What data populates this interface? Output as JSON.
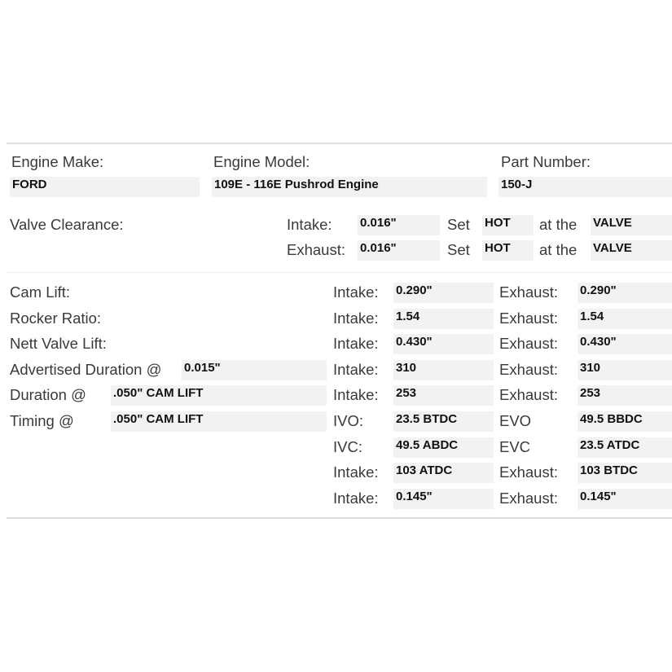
{
  "header": {
    "make_label": "Engine Make:",
    "make_value": "FORD",
    "model_label": "Engine Model:",
    "model_value": "109E - 116E Pushrod Engine",
    "part_label": "Part Number:",
    "part_value": "150-J"
  },
  "valve_clearance": {
    "label": "Valve Clearance:",
    "rows": [
      {
        "label": "Intake:",
        "value": "0.016\"",
        "set_label": "Set",
        "set_value": "HOT",
        "at_label": "at the",
        "at_value": "VALVE"
      },
      {
        "label": "Exhaust:",
        "value": "0.016\"",
        "set_label": "Set",
        "set_value": "HOT",
        "at_label": "at the",
        "at_value": "VALVE"
      }
    ]
  },
  "specs": [
    {
      "label": "Cam Lift:",
      "extra": null,
      "l1": "Intake:",
      "v1": "0.290\"",
      "l2": "Exhaust:",
      "v2": "0.290\""
    },
    {
      "label": "Rocker Ratio:",
      "extra": null,
      "l1": "Intake:",
      "v1": "1.54",
      "l2": "Exhaust:",
      "v2": "1.54"
    },
    {
      "label": "Nett Valve Lift:",
      "extra": null,
      "l1": "Intake:",
      "v1": "0.430\"",
      "l2": "Exhaust:",
      "v2": "0.430\""
    },
    {
      "label": "Advertised Duration @",
      "extra": "0.015\"",
      "l1": "Intake:",
      "v1": "310",
      "l2": "Exhaust:",
      "v2": "310"
    },
    {
      "label": "Duration @",
      "extra": ".050\" CAM LIFT",
      "l1": "Intake:",
      "v1": "253",
      "l2": "Exhaust:",
      "v2": "253"
    },
    {
      "label": "Timing @",
      "extra": ".050\" CAM LIFT",
      "l1": "IVO:",
      "v1": "23.5 BTDC",
      "l2": "EVO",
      "v2": "49.5 BBDC"
    },
    {
      "label": null,
      "extra": null,
      "l1": "IVC:",
      "v1": "49.5 ABDC",
      "l2": "EVC",
      "v2": "23.5 ATDC"
    },
    {
      "label": null,
      "extra": null,
      "l1": "Intake:",
      "v1": "103 ATDC",
      "l2": "Exhaust:",
      "v2": "103 BTDC"
    },
    {
      "label": null,
      "extra": null,
      "l1": "Intake:",
      "v1": "0.145\"",
      "l2": "Exhaust:",
      "v2": "0.145\""
    }
  ]
}
